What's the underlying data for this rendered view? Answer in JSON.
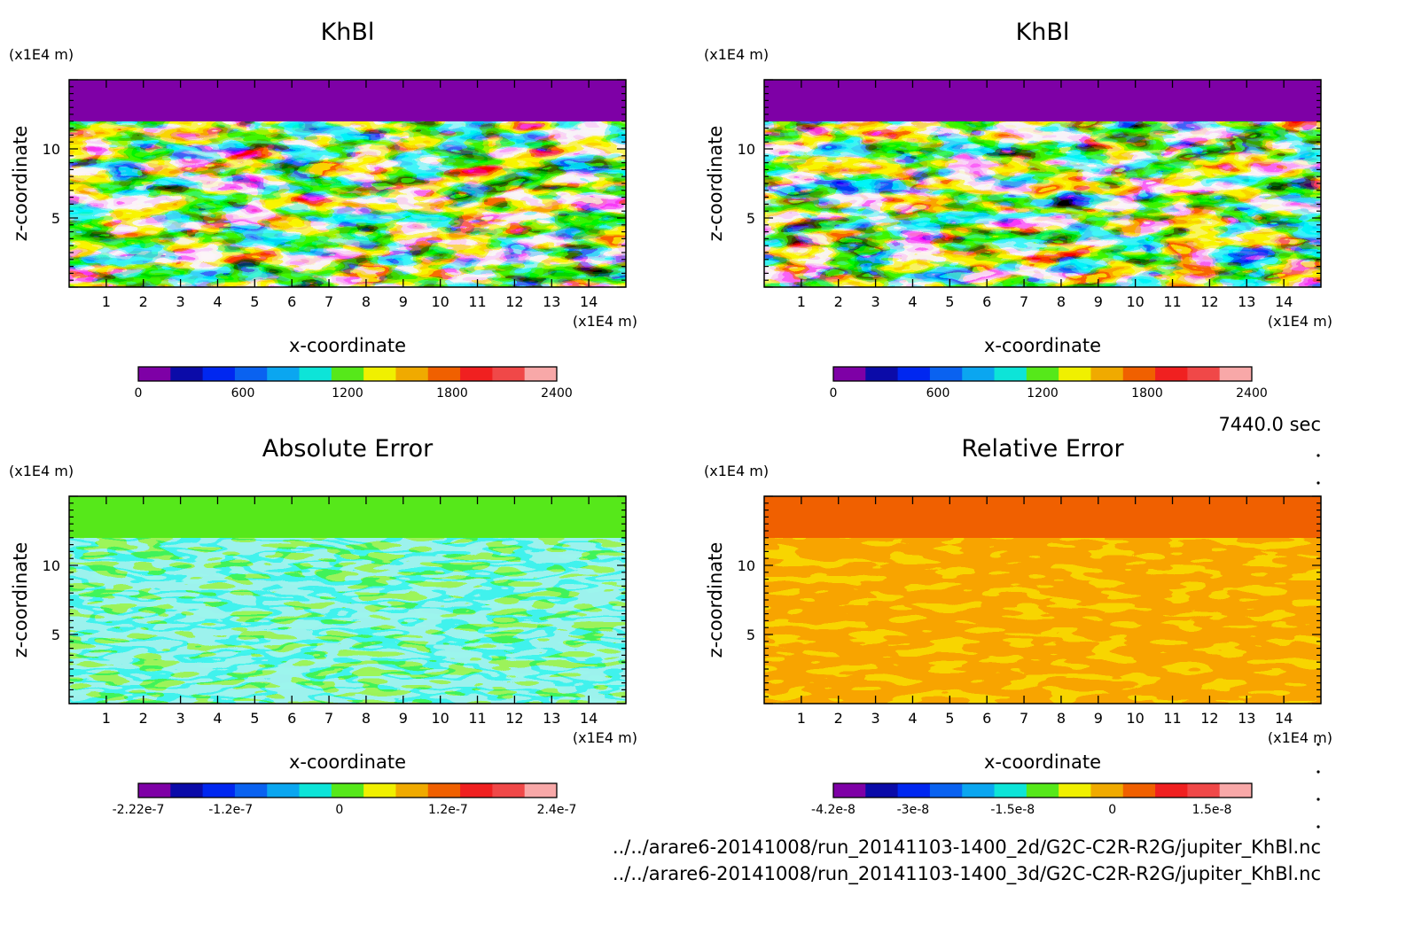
{
  "time_label": "7440.0 sec",
  "file_paths": [
    "../../arare6-20141008/run_20141103-1400_2d/G2C-C2R-R2G/jupiter_KhBl.nc",
    "../../arare6-20141008/run_20141103-1400_3d/G2C-C2R-R2G/jupiter_KhBl.nc"
  ],
  "chart_data": [
    {
      "type": "heatmap",
      "title": "KhBl",
      "xlabel": "x-coordinate",
      "ylabel": "z-coordinate",
      "x_unit": "(x1E4 m)",
      "y_unit": "(x1E4 m)",
      "xlim": [
        0,
        15
      ],
      "ylim": [
        0,
        15
      ],
      "x_ticks": [
        1,
        2,
        3,
        4,
        5,
        6,
        7,
        8,
        9,
        10,
        11,
        12,
        13,
        14
      ],
      "y_ticks": [
        5,
        10
      ],
      "field": "turbulent-mixing",
      "colorbar": {
        "min": 0,
        "max": 2400,
        "tick_values": [
          0,
          600,
          1200,
          1800,
          2400
        ],
        "tick_labels": [
          "0",
          "600",
          "1200",
          "1800",
          "2400"
        ],
        "colors": [
          "#7e00a6",
          "#0b0ba8",
          "#0027f0",
          "#0a62f0",
          "#0ba6f0",
          "#0de4d8",
          "#56e81a",
          "#f0f000",
          "#f0aa00",
          "#f06000",
          "#f02020",
          "#f04848",
          "#f8a8a8"
        ]
      }
    },
    {
      "type": "heatmap",
      "title": "KhBl",
      "xlabel": "x-coordinate",
      "ylabel": "z-coordinate",
      "x_unit": "(x1E4 m)",
      "y_unit": "(x1E4 m)",
      "xlim": [
        0,
        15
      ],
      "ylim": [
        0,
        15
      ],
      "x_ticks": [
        1,
        2,
        3,
        4,
        5,
        6,
        7,
        8,
        9,
        10,
        11,
        12,
        13,
        14
      ],
      "y_ticks": [
        5,
        10
      ],
      "field": "turbulent-mixing",
      "colorbar": {
        "min": 0,
        "max": 2400,
        "tick_values": [
          0,
          600,
          1200,
          1800,
          2400
        ],
        "tick_labels": [
          "0",
          "600",
          "1200",
          "1800",
          "2400"
        ],
        "colors": [
          "#7e00a6",
          "#0b0ba8",
          "#0027f0",
          "#0a62f0",
          "#0ba6f0",
          "#0de4d8",
          "#56e81a",
          "#f0f000",
          "#f0aa00",
          "#f06000",
          "#f02020",
          "#f04848",
          "#f8a8a8"
        ]
      }
    },
    {
      "type": "heatmap",
      "title": "Absolute Error",
      "xlabel": "x-coordinate",
      "ylabel": "z-coordinate",
      "x_unit": "(x1E4 m)",
      "y_unit": "(x1E4 m)",
      "xlim": [
        0,
        15
      ],
      "ylim": [
        0,
        15
      ],
      "x_ticks": [
        1,
        2,
        3,
        4,
        5,
        6,
        7,
        8,
        9,
        10,
        11,
        12,
        13,
        14
      ],
      "y_ticks": [
        5,
        10
      ],
      "field": "abs-error",
      "colorbar": {
        "min": -2.22e-07,
        "max": 2.4e-07,
        "tick_values": [
          -2.22e-07,
          -1.2e-07,
          0,
          1.2e-07,
          2.4e-07
        ],
        "tick_labels": [
          "-2.22e-7",
          "-1.2e-7",
          "0",
          "1.2e-7",
          "2.4e-7"
        ],
        "colors": [
          "#7e00a6",
          "#0b0ba8",
          "#0027f0",
          "#0a62f0",
          "#0ba6f0",
          "#0de4d8",
          "#56e81a",
          "#f0f000",
          "#f0aa00",
          "#f06000",
          "#f02020",
          "#f04848",
          "#f8a8a8"
        ]
      }
    },
    {
      "type": "heatmap",
      "title": "Relative Error",
      "xlabel": "x-coordinate",
      "ylabel": "z-coordinate",
      "x_unit": "(x1E4 m)",
      "y_unit": "(x1E4 m)",
      "xlim": [
        0,
        15
      ],
      "ylim": [
        0,
        15
      ],
      "x_ticks": [
        1,
        2,
        3,
        4,
        5,
        6,
        7,
        8,
        9,
        10,
        11,
        12,
        13,
        14
      ],
      "y_ticks": [
        5,
        10
      ],
      "field": "rel-error",
      "colorbar": {
        "min": -4.2e-08,
        "max": 2.1e-08,
        "tick_values": [
          -4.2e-08,
          -3e-08,
          -1.5e-08,
          0,
          1.5e-08
        ],
        "tick_labels": [
          "-4.2e-8",
          "-3e-8",
          "-1.5e-8",
          "0",
          "1.5e-8"
        ],
        "colors": [
          "#7e00a6",
          "#0b0ba8",
          "#0027f0",
          "#0a62f0",
          "#0ba6f0",
          "#0de4d8",
          "#56e81a",
          "#f0f000",
          "#f0aa00",
          "#f06000",
          "#f02020",
          "#f04848",
          "#f8a8a8"
        ]
      }
    }
  ]
}
